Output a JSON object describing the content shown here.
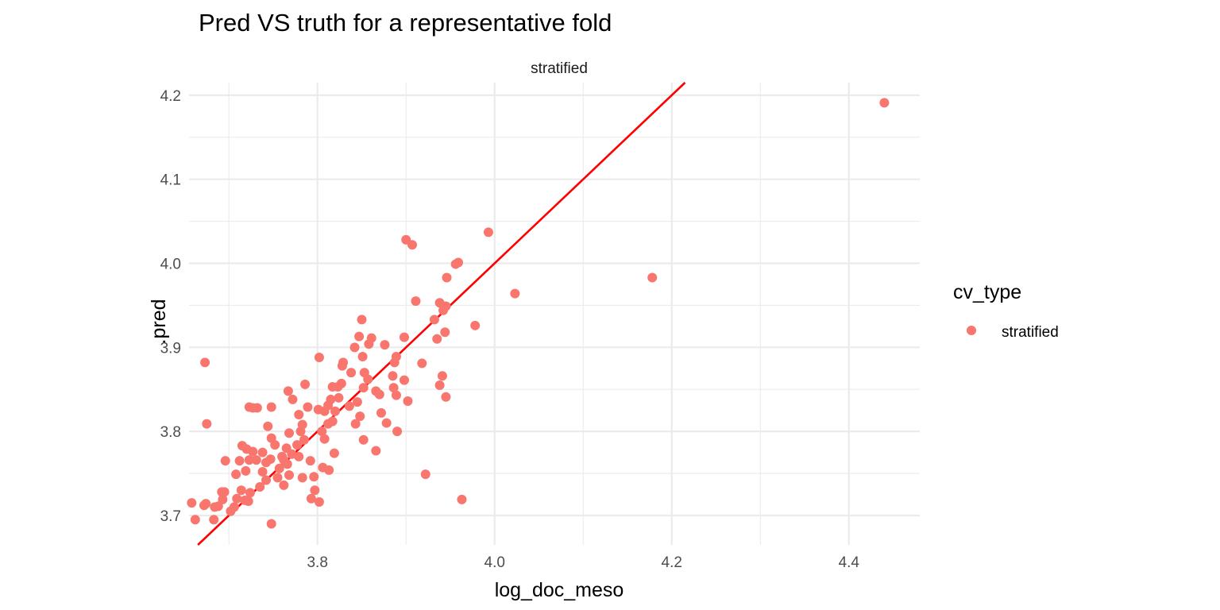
{
  "chart_data": {
    "type": "scatter",
    "title": "Pred VS truth for a representative fold",
    "facet_label": "stratified",
    "xlabel": "log_doc_meso",
    "ylabel": ".pred",
    "xlim": [
      3.655,
      4.48
    ],
    "ylim": [
      3.665,
      4.215
    ],
    "x_ticks": [
      3.8,
      4.0,
      4.2,
      4.4
    ],
    "x_tick_labels": [
      "3.8",
      "4.0",
      "4.2",
      "4.4"
    ],
    "y_ticks": [
      3.7,
      3.8,
      3.9,
      4.0,
      4.1,
      4.2
    ],
    "y_tick_labels": [
      "3.7",
      "3.8",
      "3.9",
      "4.0",
      "4.1",
      "4.2"
    ],
    "grid": true,
    "legend": {
      "title": "cv_type",
      "position": "right",
      "entries": [
        {
          "label": "stratified",
          "color": "#F8766D"
        }
      ]
    },
    "reference_line": {
      "slope": 1,
      "intercept": 0,
      "color": "#FF0000"
    },
    "series": [
      {
        "name": "stratified",
        "color": "#F8766D",
        "points": [
          [
            4.44,
            4.191
          ],
          [
            4.178,
            3.983
          ],
          [
            4.023,
            3.964
          ],
          [
            3.993,
            4.037
          ],
          [
            3.959,
            4.001
          ],
          [
            3.956,
            3.999
          ],
          [
            3.963,
            3.719
          ],
          [
            3.978,
            3.926
          ],
          [
            3.946,
            3.983
          ],
          [
            3.945,
            3.949
          ],
          [
            3.942,
            3.944
          ],
          [
            3.938,
            3.953
          ],
          [
            3.944,
            3.918
          ],
          [
            3.941,
            3.866
          ],
          [
            3.938,
            3.855
          ],
          [
            3.945,
            3.841
          ],
          [
            3.932,
            3.933
          ],
          [
            3.935,
            3.91
          ],
          [
            3.918,
            3.881
          ],
          [
            3.922,
            3.749
          ],
          [
            3.911,
            3.955
          ],
          [
            3.907,
            4.022
          ],
          [
            3.9,
            4.028
          ],
          [
            3.898,
            3.912
          ],
          [
            3.898,
            3.861
          ],
          [
            3.902,
            3.836
          ],
          [
            3.889,
            3.889
          ],
          [
            3.887,
            3.882
          ],
          [
            3.885,
            3.866
          ],
          [
            3.886,
            3.852
          ],
          [
            3.889,
            3.843
          ],
          [
            3.89,
            3.8
          ],
          [
            3.876,
            3.903
          ],
          [
            3.87,
            3.844
          ],
          [
            3.872,
            3.822
          ],
          [
            3.878,
            3.81
          ],
          [
            3.866,
            3.848
          ],
          [
            3.866,
            3.777
          ],
          [
            3.861,
            3.911
          ],
          [
            3.858,
            3.904
          ],
          [
            3.853,
            3.87
          ],
          [
            3.857,
            3.862
          ],
          [
            3.852,
            3.852
          ],
          [
            3.85,
            3.933
          ],
          [
            3.851,
            3.889
          ],
          [
            3.847,
            3.913
          ],
          [
            3.842,
            3.9
          ],
          [
            3.838,
            3.87
          ],
          [
            3.845,
            3.835
          ],
          [
            3.848,
            3.818
          ],
          [
            3.852,
            3.79
          ],
          [
            3.843,
            3.809
          ],
          [
            3.836,
            3.83
          ],
          [
            3.829,
            3.882
          ],
          [
            3.828,
            3.878
          ],
          [
            3.827,
            3.857
          ],
          [
            3.823,
            3.853
          ],
          [
            3.817,
            3.853
          ],
          [
            3.824,
            3.84
          ],
          [
            3.815,
            3.838
          ],
          [
            3.812,
            3.831
          ],
          [
            3.82,
            3.824
          ],
          [
            3.817,
            3.812
          ],
          [
            3.812,
            3.809
          ],
          [
            3.808,
            3.824
          ],
          [
            3.802,
            3.888
          ],
          [
            3.801,
            3.826
          ],
          [
            3.805,
            3.8
          ],
          [
            3.808,
            3.791
          ],
          [
            3.819,
            3.774
          ],
          [
            3.813,
            3.754
          ],
          [
            3.806,
            3.757
          ],
          [
            3.802,
            3.716
          ],
          [
            3.796,
            3.746
          ],
          [
            3.797,
            3.73
          ],
          [
            3.793,
            3.72
          ],
          [
            3.792,
            3.765
          ],
          [
            3.786,
            3.856
          ],
          [
            3.789,
            3.829
          ],
          [
            3.783,
            3.808
          ],
          [
            3.779,
            3.82
          ],
          [
            3.781,
            3.8
          ],
          [
            3.785,
            3.79
          ],
          [
            3.777,
            3.784
          ],
          [
            3.779,
            3.77
          ],
          [
            3.783,
            3.745
          ],
          [
            3.772,
            3.838
          ],
          [
            3.767,
            3.848
          ],
          [
            3.768,
            3.798
          ],
          [
            3.765,
            3.78
          ],
          [
            3.771,
            3.773
          ],
          [
            3.762,
            3.766
          ],
          [
            3.766,
            3.761
          ],
          [
            3.76,
            3.77
          ],
          [
            3.757,
            3.756
          ],
          [
            3.768,
            3.748
          ],
          [
            3.762,
            3.736
          ],
          [
            3.755,
            3.745
          ],
          [
            3.748,
            3.829
          ],
          [
            3.744,
            3.806
          ],
          [
            3.748,
            3.792
          ],
          [
            3.752,
            3.784
          ],
          [
            3.747,
            3.767
          ],
          [
            3.742,
            3.763
          ],
          [
            3.738,
            3.775
          ],
          [
            3.738,
            3.752
          ],
          [
            3.742,
            3.742
          ],
          [
            3.735,
            3.734
          ],
          [
            3.748,
            3.69
          ],
          [
            3.732,
            3.828
          ],
          [
            3.727,
            3.828
          ],
          [
            3.723,
            3.829
          ],
          [
            3.731,
            3.766
          ],
          [
            3.727,
            3.776
          ],
          [
            3.723,
            3.766
          ],
          [
            3.72,
            3.779
          ],
          [
            3.715,
            3.783
          ],
          [
            3.719,
            3.753
          ],
          [
            3.724,
            3.727
          ],
          [
            3.722,
            3.717
          ],
          [
            3.718,
            3.718
          ],
          [
            3.712,
            3.765
          ],
          [
            3.708,
            3.749
          ],
          [
            3.714,
            3.73
          ],
          [
            3.709,
            3.72
          ],
          [
            3.706,
            3.71
          ],
          [
            3.702,
            3.705
          ],
          [
            3.696,
            3.765
          ],
          [
            3.695,
            3.728
          ],
          [
            3.692,
            3.728
          ],
          [
            3.693,
            3.719
          ],
          [
            3.688,
            3.711
          ],
          [
            3.684,
            3.71
          ],
          [
            3.683,
            3.695
          ],
          [
            3.675,
            3.809
          ],
          [
            3.673,
            3.882
          ],
          [
            3.674,
            3.714
          ],
          [
            3.662,
            3.695
          ],
          [
            3.658,
            3.715
          ],
          [
            3.672,
            3.712
          ]
        ]
      }
    ]
  }
}
